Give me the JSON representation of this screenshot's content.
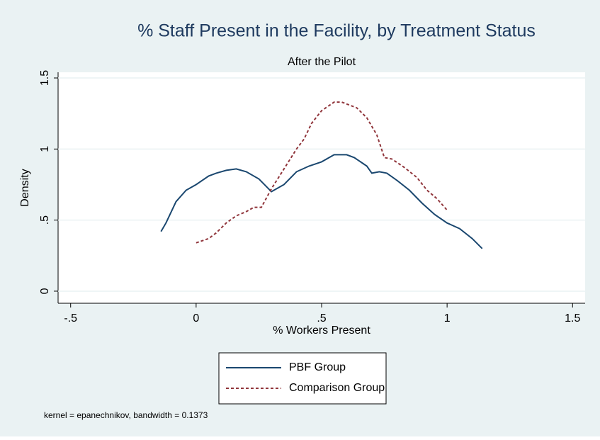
{
  "chart_data": {
    "type": "line",
    "title": "% Staff Present in the Facility, by Treatment Status",
    "subtitle": "After the Pilot",
    "x_label": "% Workers Present",
    "y_label": "Density",
    "note": "kernel = epanechnikov, bandwidth = 0.1373",
    "xlim": [
      -0.55,
      1.55
    ],
    "ylim": [
      -0.085,
      1.54
    ],
    "xticks": [
      {
        "value": -0.5,
        "label": "-.5"
      },
      0,
      {
        "value": 0.5,
        "label": ".5"
      },
      1,
      1.5
    ],
    "yticks": [
      0,
      {
        "value": 0.5,
        "label": ".5"
      },
      1,
      1.5
    ],
    "grid": true,
    "series": [
      {
        "name": "PBF Group",
        "color": "#1a476f",
        "dash": false,
        "x": [
          -0.14,
          -0.12,
          -0.08,
          -0.04,
          0,
          0.05,
          0.08,
          0.12,
          0.16,
          0.2,
          0.25,
          0.3,
          0.35,
          0.4,
          0.45,
          0.5,
          0.55,
          0.6,
          0.63,
          0.68,
          0.7,
          0.73,
          0.76,
          0.8,
          0.85,
          0.9,
          0.95,
          1.0,
          1.05,
          1.1,
          1.14
        ],
        "values": [
          0.42,
          0.48,
          0.63,
          0.71,
          0.75,
          0.81,
          0.83,
          0.85,
          0.86,
          0.84,
          0.79,
          0.7,
          0.75,
          0.84,
          0.88,
          0.91,
          0.96,
          0.96,
          0.94,
          0.88,
          0.83,
          0.84,
          0.83,
          0.78,
          0.71,
          0.62,
          0.54,
          0.48,
          0.44,
          0.37,
          0.3
        ]
      },
      {
        "name": "Comparison Group",
        "color": "#90353b",
        "dash": true,
        "x": [
          0,
          0.05,
          0.08,
          0.12,
          0.16,
          0.2,
          0.23,
          0.26,
          0.3,
          0.35,
          0.4,
          0.43,
          0.46,
          0.5,
          0.55,
          0.58,
          0.64,
          0.68,
          0.72,
          0.75,
          0.78,
          0.83,
          0.88,
          0.92,
          0.96,
          1.0
        ],
        "values": [
          0.34,
          0.37,
          0.41,
          0.48,
          0.53,
          0.56,
          0.59,
          0.59,
          0.72,
          0.86,
          1.0,
          1.07,
          1.18,
          1.27,
          1.33,
          1.33,
          1.29,
          1.22,
          1.1,
          0.94,
          0.93,
          0.87,
          0.8,
          0.71,
          0.65,
          0.57
        ]
      }
    ]
  }
}
